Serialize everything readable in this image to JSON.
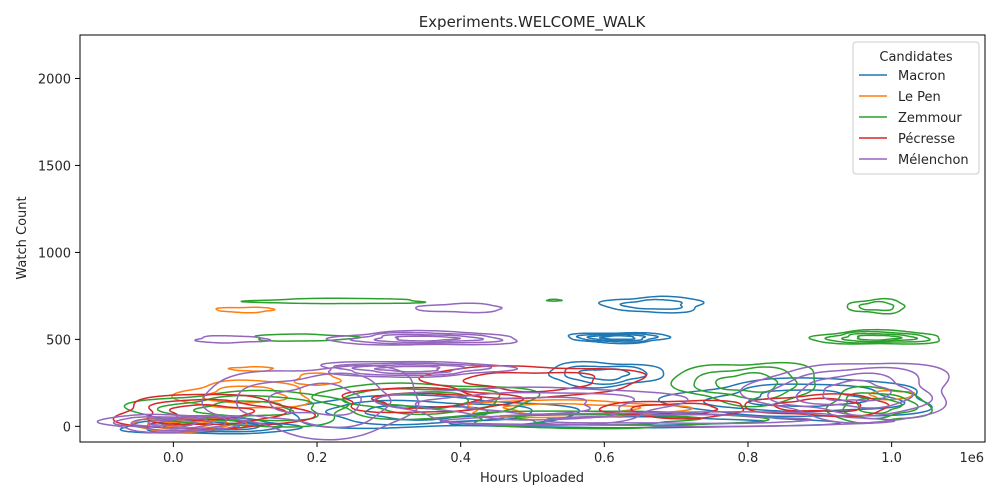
{
  "chart_data": {
    "type": "contour",
    "title": "Experiments.WELCOME_WALK",
    "xlabel": "Hours Uploaded",
    "ylabel": "Watch Count",
    "x_offset_label": "1e6",
    "xlim": [
      -0.13,
      1.13
    ],
    "ylim": [
      -90,
      2250
    ],
    "x_ticks": [
      0.0,
      0.2,
      0.4,
      0.6,
      0.8,
      1.0
    ],
    "x_tick_labels": [
      "0.0",
      "0.2",
      "0.4",
      "0.6",
      "0.8",
      "1.0"
    ],
    "y_ticks": [
      0,
      500,
      1000,
      1500,
      2000
    ],
    "y_tick_labels": [
      "0",
      "500",
      "1000",
      "1500",
      "2000"
    ],
    "grid": false,
    "legend": {
      "title": "Candidates",
      "placement": "top-right"
    },
    "series": [
      {
        "name": "Macron",
        "color": "#1f77b4",
        "clusters": [
          {
            "cx": 0.05,
            "cy": 0,
            "rx": 0.12,
            "ry": 45,
            "levels": 4
          },
          {
            "cx": 0.35,
            "cy": 80,
            "rx": 0.2,
            "ry": 90,
            "levels": 3
          },
          {
            "cx": 0.6,
            "cy": 300,
            "rx": 0.08,
            "ry": 70,
            "levels": 3
          },
          {
            "cx": 0.62,
            "cy": 510,
            "rx": 0.07,
            "ry": 30,
            "levels": 4
          },
          {
            "cx": 0.67,
            "cy": 700,
            "rx": 0.07,
            "ry": 45,
            "levels": 2
          },
          {
            "cx": 0.88,
            "cy": 160,
            "rx": 0.18,
            "ry": 110,
            "levels": 3
          },
          {
            "cx": 0.65,
            "cy": 30,
            "rx": 0.25,
            "ry": 40,
            "levels": 2
          }
        ]
      },
      {
        "name": "Le Pen",
        "color": "#ff7f0e",
        "clusters": [
          {
            "cx": 0.02,
            "cy": 10,
            "rx": 0.08,
            "ry": 40,
            "levels": 3
          },
          {
            "cx": 0.1,
            "cy": 670,
            "rx": 0.04,
            "ry": 15,
            "levels": 1
          },
          {
            "cx": 0.11,
            "cy": 330,
            "rx": 0.03,
            "ry": 12,
            "levels": 1
          },
          {
            "cx": 0.1,
            "cy": 180,
            "rx": 0.09,
            "ry": 80,
            "levels": 2
          },
          {
            "cx": 0.2,
            "cy": 270,
            "rx": 0.03,
            "ry": 35,
            "levels": 1
          },
          {
            "cx": 0.55,
            "cy": 100,
            "rx": 0.15,
            "ry": 50,
            "levels": 2
          },
          {
            "cx": 1.0,
            "cy": 180,
            "rx": 0.03,
            "ry": 25,
            "levels": 1
          }
        ]
      },
      {
        "name": "Zemmour",
        "color": "#2ca02c",
        "clusters": [
          {
            "cx": 0.1,
            "cy": 100,
            "rx": 0.15,
            "ry": 100,
            "levels": 3
          },
          {
            "cx": 0.23,
            "cy": 720,
            "rx": 0.12,
            "ry": 15,
            "levels": 1
          },
          {
            "cx": 0.53,
            "cy": 725,
            "rx": 0.01,
            "ry": 5,
            "levels": 1
          },
          {
            "cx": 0.18,
            "cy": 510,
            "rx": 0.07,
            "ry": 20,
            "levels": 1
          },
          {
            "cx": 0.35,
            "cy": 150,
            "rx": 0.15,
            "ry": 100,
            "levels": 3
          },
          {
            "cx": 0.8,
            "cy": 250,
            "rx": 0.1,
            "ry": 120,
            "levels": 3
          },
          {
            "cx": 0.98,
            "cy": 690,
            "rx": 0.04,
            "ry": 40,
            "levels": 2
          },
          {
            "cx": 0.98,
            "cy": 510,
            "rx": 0.09,
            "ry": 40,
            "levels": 4
          },
          {
            "cx": 0.98,
            "cy": 120,
            "rx": 0.07,
            "ry": 100,
            "levels": 3
          },
          {
            "cx": 0.6,
            "cy": 40,
            "rx": 0.2,
            "ry": 50,
            "levels": 2
          }
        ]
      },
      {
        "name": "Pécresse",
        "color": "#d62728",
        "clusters": [
          {
            "cx": 0.05,
            "cy": 80,
            "rx": 0.13,
            "ry": 100,
            "levels": 3
          },
          {
            "cx": 0.35,
            "cy": 150,
            "rx": 0.12,
            "ry": 70,
            "levels": 2
          },
          {
            "cx": 0.5,
            "cy": 260,
            "rx": 0.15,
            "ry": 90,
            "levels": 2
          },
          {
            "cx": 0.7,
            "cy": 100,
            "rx": 0.1,
            "ry": 50,
            "levels": 2
          },
          {
            "cx": 0.9,
            "cy": 120,
            "rx": 0.1,
            "ry": 60,
            "levels": 2
          }
        ]
      },
      {
        "name": "Mélenchon",
        "color": "#9467bd",
        "clusters": [
          {
            "cx": 0.0,
            "cy": 20,
            "rx": 0.1,
            "ry": 50,
            "levels": 4
          },
          {
            "cx": 0.2,
            "cy": 150,
            "rx": 0.15,
            "ry": 200,
            "levels": 3
          },
          {
            "cx": 0.4,
            "cy": 680,
            "rx": 0.06,
            "ry": 25,
            "levels": 1
          },
          {
            "cx": 0.35,
            "cy": 505,
            "rx": 0.13,
            "ry": 40,
            "levels": 4
          },
          {
            "cx": 0.08,
            "cy": 500,
            "rx": 0.05,
            "ry": 20,
            "levels": 1
          },
          {
            "cx": 0.33,
            "cy": 330,
            "rx": 0.13,
            "ry": 45,
            "levels": 4
          },
          {
            "cx": 0.5,
            "cy": 120,
            "rx": 0.2,
            "ry": 110,
            "levels": 3
          },
          {
            "cx": 0.95,
            "cy": 200,
            "rx": 0.14,
            "ry": 170,
            "levels": 4
          },
          {
            "cx": 0.7,
            "cy": 40,
            "rx": 0.3,
            "ry": 40,
            "levels": 2
          }
        ]
      }
    ]
  }
}
